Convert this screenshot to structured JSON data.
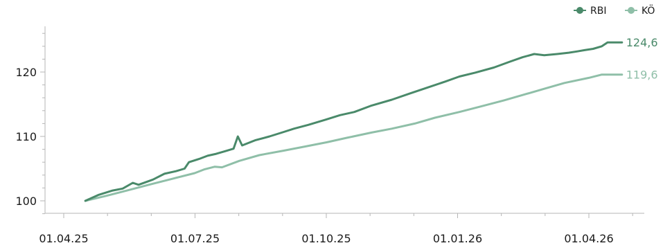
{
  "chart_data": {
    "type": "line",
    "title": "",
    "xlabel": "",
    "ylabel": "",
    "x_ticks": [
      "01.04.25",
      "01.07.25",
      "01.10.25",
      "01.01.26",
      "01.04.26"
    ],
    "y_ticks": [
      "100",
      "110",
      "120"
    ],
    "ylim": [
      98,
      127
    ],
    "grid": false,
    "legend_position": "top-right",
    "series": [
      {
        "name": "RBI",
        "color": "#4a8a6a",
        "end_label": "124,6",
        "points": [
          [
            "2025-04-16",
            100.0
          ],
          [
            "2025-04-25",
            100.9
          ],
          [
            "2025-05-05",
            101.6
          ],
          [
            "2025-05-12",
            101.9
          ],
          [
            "2025-05-19",
            102.8
          ],
          [
            "2025-05-23",
            102.5
          ],
          [
            "2025-06-02",
            103.3
          ],
          [
            "2025-06-10",
            104.2
          ],
          [
            "2025-06-18",
            104.6
          ],
          [
            "2025-06-24",
            105.0
          ],
          [
            "2025-06-27",
            106.0
          ],
          [
            "2025-07-04",
            106.5
          ],
          [
            "2025-07-10",
            107.0
          ],
          [
            "2025-07-16",
            107.3
          ],
          [
            "2025-07-22",
            107.7
          ],
          [
            "2025-07-28",
            108.1
          ],
          [
            "2025-07-31",
            110.0
          ],
          [
            "2025-08-03",
            108.6
          ],
          [
            "2025-08-12",
            109.4
          ],
          [
            "2025-08-22",
            110.0
          ],
          [
            "2025-09-01",
            110.7
          ],
          [
            "2025-09-08",
            111.2
          ],
          [
            "2025-09-18",
            111.8
          ],
          [
            "2025-09-30",
            112.6
          ],
          [
            "2025-10-10",
            113.3
          ],
          [
            "2025-10-20",
            113.8
          ],
          [
            "2025-11-01",
            114.8
          ],
          [
            "2025-11-15",
            115.7
          ],
          [
            "2025-11-28",
            116.7
          ],
          [
            "2025-12-10",
            117.6
          ],
          [
            "2025-12-22",
            118.5
          ],
          [
            "2026-01-01",
            119.3
          ],
          [
            "2026-01-12",
            119.9
          ],
          [
            "2026-01-25",
            120.7
          ],
          [
            "2026-02-05",
            121.6
          ],
          [
            "2026-02-14",
            122.3
          ],
          [
            "2026-02-22",
            122.8
          ],
          [
            "2026-03-01",
            122.6
          ],
          [
            "2026-03-10",
            122.8
          ],
          [
            "2026-03-18",
            123.0
          ],
          [
            "2026-03-24",
            123.2
          ],
          [
            "2026-03-29",
            123.4
          ],
          [
            "2026-04-04",
            123.6
          ],
          [
            "2026-04-10",
            124.0
          ],
          [
            "2026-04-14",
            124.6
          ],
          [
            "2026-04-24",
            124.6
          ]
        ]
      },
      {
        "name": "KÖ",
        "color": "#8fbfa8",
        "end_label": "119,6",
        "points": [
          [
            "2025-04-16",
            100.0
          ],
          [
            "2025-05-01",
            100.8
          ],
          [
            "2025-05-15",
            101.6
          ],
          [
            "2025-06-01",
            102.6
          ],
          [
            "2025-06-15",
            103.4
          ],
          [
            "2025-07-01",
            104.3
          ],
          [
            "2025-07-08",
            104.9
          ],
          [
            "2025-07-15",
            105.3
          ],
          [
            "2025-07-20",
            105.2
          ],
          [
            "2025-08-01",
            106.2
          ],
          [
            "2025-08-15",
            107.1
          ],
          [
            "2025-09-01",
            107.8
          ],
          [
            "2025-09-15",
            108.4
          ],
          [
            "2025-10-01",
            109.1
          ],
          [
            "2025-10-15",
            109.8
          ],
          [
            "2025-11-01",
            110.6
          ],
          [
            "2025-11-15",
            111.2
          ],
          [
            "2025-12-01",
            112.0
          ],
          [
            "2025-12-15",
            112.9
          ],
          [
            "2026-01-01",
            113.8
          ],
          [
            "2026-01-15",
            114.6
          ],
          [
            "2026-02-01",
            115.6
          ],
          [
            "2026-02-15",
            116.5
          ],
          [
            "2026-03-01",
            117.4
          ],
          [
            "2026-03-15",
            118.3
          ],
          [
            "2026-04-01",
            119.1
          ],
          [
            "2026-04-10",
            119.6
          ],
          [
            "2026-04-24",
            119.6
          ]
        ]
      }
    ]
  }
}
